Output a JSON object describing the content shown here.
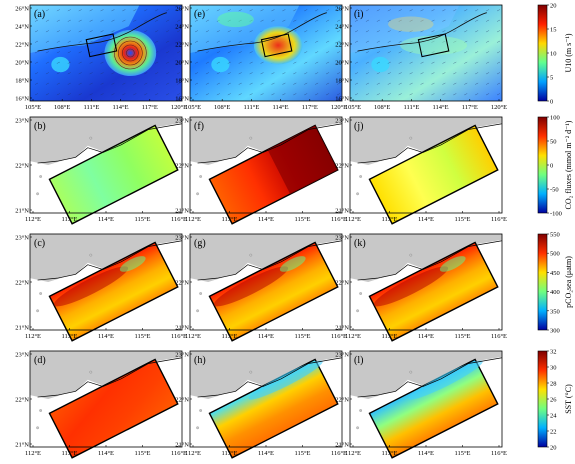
{
  "figure": {
    "rows": [
      {
        "panels": [
          {
            "label": "(a)",
            "color_mode": "wind_a"
          },
          {
            "label": "(e)",
            "color_mode": "wind_e"
          },
          {
            "label": "(i)",
            "color_mode": "wind_i"
          }
        ],
        "y_ticks": [
          "26°N",
          "24°N",
          "22°N",
          "20°N",
          "18°N",
          "16°N"
        ],
        "x_ticks": [
          "105°E",
          "108°E",
          "111°E",
          "114°E",
          "117°E",
          "120°E"
        ],
        "colorbar": {
          "label": "U10 (m s⁻¹)",
          "ticks": [
            "20",
            "15",
            "10",
            "5",
            "0"
          ],
          "stops": [
            "#7f0000",
            "#ff2000",
            "#ffd800",
            "#60ff90",
            "#00a0ff",
            "#0000a0"
          ]
        }
      },
      {
        "panels": [
          {
            "label": "(b)",
            "color_mode": "flux_b"
          },
          {
            "label": "(f)",
            "color_mode": "flux_f"
          },
          {
            "label": "(j)",
            "color_mode": "flux_j"
          }
        ],
        "y_ticks": [
          "23°N",
          "22°N",
          "21°N"
        ],
        "x_ticks": [
          "112°E",
          "113°E",
          "114°E",
          "115°E",
          "116°E"
        ],
        "colorbar": {
          "label": "CO₂ fluxes (mmol m⁻² d⁻¹)",
          "ticks": [
            "100",
            "50",
            "0",
            "-50",
            "-100"
          ],
          "stops": [
            "#7f0000",
            "#ff3000",
            "#ffe000",
            "#70ff80",
            "#00b0ff",
            "#0000a0"
          ]
        }
      },
      {
        "panels": [
          {
            "label": "(c)",
            "color_mode": "pco2"
          },
          {
            "label": "(g)",
            "color_mode": "pco2"
          },
          {
            "label": "(k)",
            "color_mode": "pco2"
          }
        ],
        "y_ticks": [
          "23°N",
          "22°N",
          "21°N"
        ],
        "x_ticks": [
          "112°E",
          "113°E",
          "114°E",
          "115°E",
          "116°E"
        ],
        "colorbar": {
          "label": "pCO₂sea (μatm)",
          "ticks": [
            "550",
            "500",
            "450",
            "400",
            "350",
            "300"
          ],
          "stops": [
            "#7f0000",
            "#ff3000",
            "#ffe000",
            "#70ff80",
            "#00b0ff",
            "#0000a0"
          ]
        }
      },
      {
        "panels": [
          {
            "label": "(d)",
            "color_mode": "sst_d"
          },
          {
            "label": "(h)",
            "color_mode": "sst_h"
          },
          {
            "label": "(l)",
            "color_mode": "sst_l"
          }
        ],
        "y_ticks": [
          "23°N",
          "22°N",
          "21°N"
        ],
        "x_ticks": [
          "112°E",
          "113°E",
          "114°E",
          "115°E",
          "116°E"
        ],
        "colorbar": {
          "label": "SST (°C)",
          "ticks": [
            "32",
            "30",
            "28",
            "26",
            "24",
            "22",
            "20"
          ],
          "stops": [
            "#7f0000",
            "#ff3000",
            "#ffe000",
            "#70ff80",
            "#00b0ff",
            "#0000a0"
          ]
        }
      }
    ]
  }
}
